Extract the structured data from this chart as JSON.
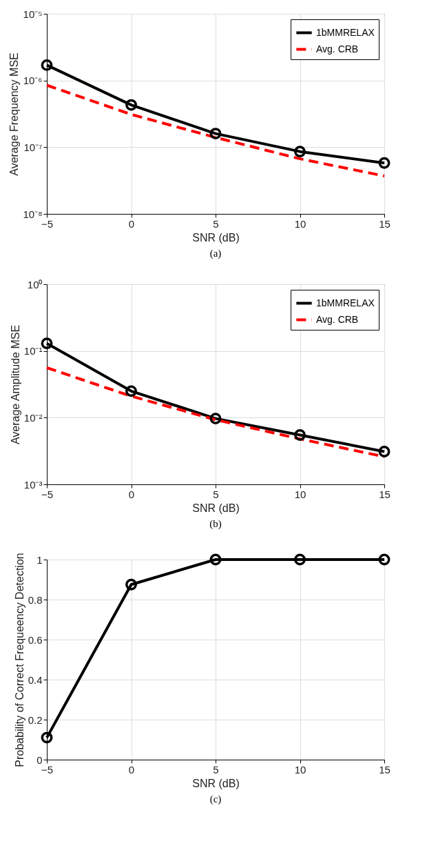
{
  "chart_data": [
    {
      "type": "line",
      "xlabel": "SNR (dB)",
      "ylabel": "Average Frequency MSE",
      "annotations": [
        "(a)"
      ],
      "x": [
        -5,
        0,
        5,
        10,
        15
      ],
      "log": true,
      "grid": true,
      "legend": "top right",
      "xlim": [
        -5,
        15
      ],
      "xticks": [
        -5,
        0,
        5,
        10,
        15
      ],
      "ylim": [
        1e-08,
        1e-05
      ],
      "yticks": [
        {
          "value": 1e-08,
          "label": "10⁻⁸"
        },
        {
          "value": 1e-07,
          "label": "10⁻⁷"
        },
        {
          "value": 1e-06,
          "label": "10⁻⁶"
        },
        {
          "value": 1e-05,
          "label": "10⁻⁵"
        }
      ],
      "series": [
        {
          "name": "1bMMRELAX",
          "color": "#000000",
          "marker": "circle",
          "line_style": "solid",
          "values": [
            1.7e-06,
            4.3e-07,
            1.6e-07,
            8.6e-08,
            5.8e-08
          ]
        },
        {
          "name": "Avg. CRB",
          "color": "#ff0000",
          "marker": "none",
          "line_style": "dashed",
          "values": [
            8.5e-07,
            3.1e-07,
            1.4e-07,
            6.7e-08,
            3.7e-08
          ]
        }
      ]
    },
    {
      "type": "line",
      "xlabel": "SNR (dB)",
      "ylabel": "Average Amplitude MSE",
      "annotations": [
        "(b)"
      ],
      "x": [
        -5,
        0,
        5,
        10,
        15
      ],
      "log": true,
      "grid": true,
      "legend": "top right",
      "xlim": [
        -5,
        15
      ],
      "xticks": [
        -5,
        0,
        5,
        10,
        15
      ],
      "ylim": [
        0.001,
        1
      ],
      "yticks": [
        {
          "value": 0.001,
          "label": "10⁻³"
        },
        {
          "value": 0.01,
          "label": "10⁻²"
        },
        {
          "value": 0.1,
          "label": "10⁻¹"
        },
        {
          "value": 1,
          "label": "10⁰"
        }
      ],
      "series": [
        {
          "name": "1bMMRELAX",
          "color": "#000000",
          "marker": "circle",
          "line_style": "solid",
          "values": [
            0.13,
            0.025,
            0.0097,
            0.0055,
            0.0031
          ]
        },
        {
          "name": "Avg. CRB",
          "color": "#ff0000",
          "marker": "none",
          "line_style": "dashed",
          "values": [
            0.056,
            0.021,
            0.0093,
            0.0048,
            0.0026
          ]
        }
      ]
    },
    {
      "type": "line",
      "xlabel": "SNR (dB)",
      "ylabel": "Probability of Correct Frequeency Detection",
      "annotations": [
        "(c)"
      ],
      "x": [
        -5,
        0,
        5,
        10,
        15
      ],
      "grid": true,
      "xlim": [
        -5,
        15
      ],
      "xticks": [
        -5,
        0,
        5,
        10,
        15
      ],
      "ylim": [
        0,
        1
      ],
      "yticks": [
        0,
        0.2,
        0.4,
        0.6,
        0.8,
        1
      ],
      "series": [
        {
          "color": "#000000",
          "marker": "circle",
          "line_style": "solid",
          "values": [
            0.11,
            0.875,
            1,
            1,
            1
          ]
        }
      ]
    }
  ]
}
